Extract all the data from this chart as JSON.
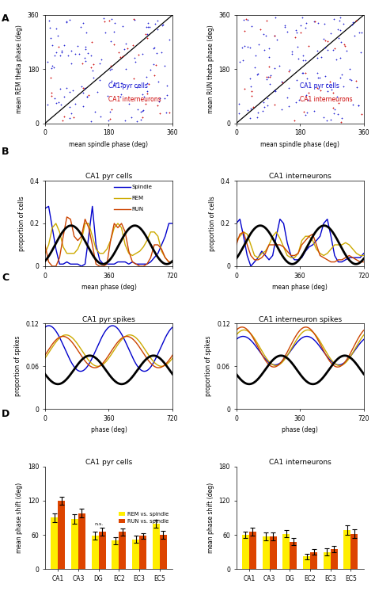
{
  "colors": {
    "blue": "#0000CC",
    "red": "#CC0000",
    "spindle": "#0000CC",
    "REM": "#CCAA00",
    "RUN": "#CC4400",
    "black": "#000000",
    "yellow_bar": "#FFEE00",
    "orange_bar": "#DD4400"
  },
  "panel_D_left": {
    "title": "CA1 pyr cells",
    "ylabel": "mean phase shift (deg)",
    "ylim": [
      0,
      180
    ],
    "yticks": [
      0,
      60,
      120,
      180
    ],
    "categories": [
      "CA1",
      "CA3",
      "DG",
      "EC2",
      "EC3",
      "EC5"
    ],
    "rem_vals": [
      90,
      88,
      58,
      50,
      52,
      80
    ],
    "run_vals": [
      120,
      98,
      65,
      65,
      58,
      60
    ],
    "rem_err": [
      8,
      8,
      7,
      6,
      6,
      7
    ],
    "run_err": [
      7,
      8,
      7,
      6,
      5,
      7
    ]
  },
  "panel_D_right": {
    "title": "CA1 interneurons",
    "ylabel": "mean phase shift (deg)",
    "ylim": [
      0,
      180
    ],
    "yticks": [
      0,
      60,
      120,
      180
    ],
    "categories": [
      "CA1",
      "CA3",
      "DG",
      "EC2",
      "EC3",
      "EC5"
    ],
    "rem_vals": [
      60,
      57,
      62,
      22,
      30,
      68
    ],
    "run_vals": [
      65,
      57,
      48,
      30,
      35,
      62
    ],
    "rem_err": [
      6,
      7,
      6,
      5,
      6,
      8
    ],
    "run_err": [
      7,
      7,
      6,
      5,
      6,
      8
    ]
  }
}
